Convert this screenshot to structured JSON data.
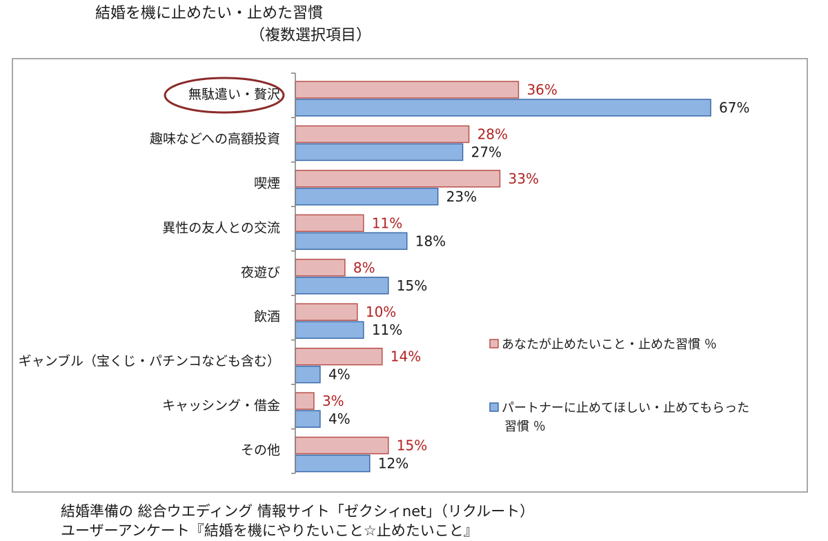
{
  "header": {
    "title": "結婚を機に止めたい・止めた習慣",
    "subtitle": "（複数選択項目）"
  },
  "chart_data": {
    "type": "bar",
    "orientation": "horizontal",
    "categories": [
      "無駄遣い・贅沢",
      "趣味などへの高額投資",
      "喫煙",
      "異性の友人との交流",
      "夜遊び",
      "飲酒",
      "ギャンブル（宝くじ・パチンコなども含む）",
      "キャッシング・借金",
      "その他"
    ],
    "highlighted_category": "無駄遣い・贅沢",
    "series": [
      {
        "name": "あなたが止めたいこと・止めた習慣 ％",
        "values": [
          36,
          28,
          33,
          11,
          8,
          10,
          14,
          3,
          15
        ],
        "color": "#e6b9b8",
        "edge": "#b84f4c",
        "label_color": "#b22222"
      },
      {
        "name": "パートナーに止めてほしい・止めてもらった習慣 ％",
        "values": [
          67,
          27,
          23,
          18,
          15,
          11,
          4,
          4,
          12
        ],
        "color": "#8eb4e3",
        "edge": "#3a6aa8",
        "label_color": "#1a1a1a"
      }
    ],
    "value_labels": [
      [
        "36%",
        "28%",
        "33%",
        "11%",
        "8%",
        "10%",
        "14%",
        "3%",
        "15%"
      ],
      [
        "67%",
        "27%",
        "23%",
        "18%",
        "15%",
        "11%",
        "4%",
        "4%",
        "12%"
      ]
    ],
    "legend_position": "right",
    "xlim": [
      0,
      67
    ],
    "grid": false
  },
  "footer": {
    "source_line1": "結婚準備の 総合ウエディング 情報サイト「ゼクシィnet」（リクルート）",
    "source_line2": "ユーザーアンケート『結婚を機にやりたいこと☆止めたいこと』"
  }
}
